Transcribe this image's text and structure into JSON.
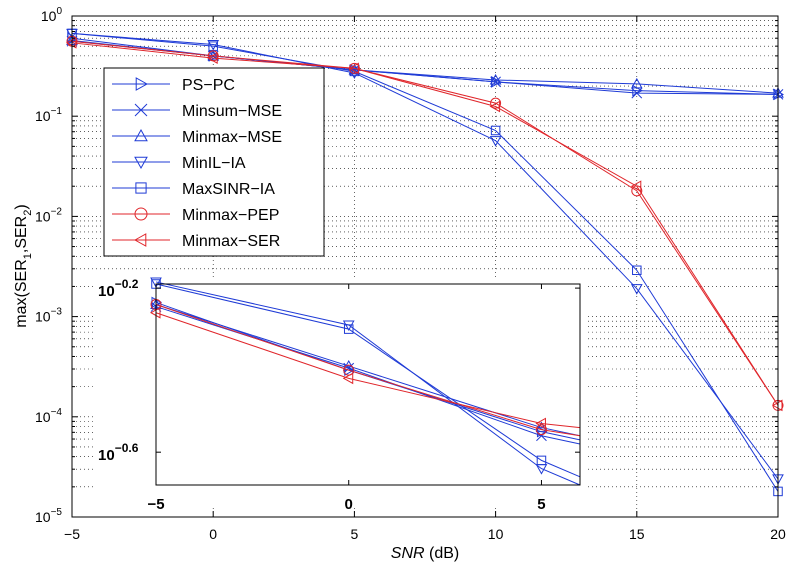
{
  "chart_data": {
    "type": "line",
    "xlabel_italic": "SNR",
    "xlabel_unit": " (dB)",
    "ylabel": {
      "base": "max(SER",
      "sub1": "1",
      "sep": ",SER",
      "sub2": "2",
      "end": ")"
    },
    "x_ticks": [
      "−5",
      "0",
      "5",
      "10",
      "15",
      "20"
    ],
    "y_ticks": [
      {
        "base": "10",
        "exp": "0"
      },
      {
        "base": "10",
        "exp": "−1"
      },
      {
        "base": "10",
        "exp": "−2"
      },
      {
        "base": "10",
        "exp": "−3"
      },
      {
        "base": "10",
        "exp": "−4"
      },
      {
        "base": "10",
        "exp": "−5"
      }
    ],
    "xlim": [
      -5,
      20
    ],
    "ylim_log10": [
      -5,
      0
    ],
    "x": [
      -5,
      0,
      5,
      10,
      15,
      20
    ],
    "colors": {
      "blue": "#1f3bd6",
      "red": "#e0262b"
    },
    "series": [
      {
        "name": "PS−PC",
        "marker": "triangle-right",
        "color": "blue",
        "values": [
          0.6,
          0.4,
          0.29,
          0.22,
          0.18,
          0.165
        ]
      },
      {
        "name": "Minsum−MSE",
        "marker": "x",
        "color": "blue",
        "values": [
          0.56,
          0.4,
          0.29,
          0.22,
          0.17,
          0.165
        ]
      },
      {
        "name": "Minmax−MSE",
        "marker": "triangle-up",
        "color": "blue",
        "values": [
          0.57,
          0.4,
          0.29,
          0.23,
          0.21,
          0.17
        ]
      },
      {
        "name": "MinIL−IA",
        "marker": "triangle-down",
        "color": "blue",
        "values": [
          0.67,
          0.52,
          0.27,
          0.057,
          0.0019,
          2.4e-05
        ]
      },
      {
        "name": "MaxSINR−IA",
        "marker": "square",
        "color": "blue",
        "values": [
          0.67,
          0.5,
          0.28,
          0.072,
          0.0029,
          1.8e-05
        ]
      },
      {
        "name": "Minmax−PEP",
        "marker": "circle",
        "color": "red",
        "values": [
          0.56,
          0.4,
          0.3,
          0.135,
          0.018,
          0.00013
        ]
      },
      {
        "name": "Minmax−SER",
        "marker": "triangle-left",
        "color": "red",
        "values": [
          0.54,
          0.38,
          0.3,
          0.125,
          0.02,
          0.00013
        ]
      }
    ],
    "inset": {
      "x_ticks": [
        "−5",
        "0",
        "5"
      ],
      "y_ticks": [
        {
          "base": "10",
          "exp": "−0.2",
          "value": -0.2
        },
        {
          "base": "10",
          "exp": "−0.6",
          "value": -0.6
        }
      ],
      "xlim": [
        -5,
        6
      ],
      "ylim_log10": [
        -0.68,
        -0.19
      ],
      "x": [
        -5,
        0,
        5,
        6
      ],
      "series_log10": [
        {
          "name": "PS−PC",
          "values": [
            -0.235,
            -0.4,
            -0.55,
            -0.57
          ]
        },
        {
          "name": "Minsum−MSE",
          "values": [
            -0.245,
            -0.395,
            -0.56,
            -0.58
          ]
        },
        {
          "name": "Minmax−MSE",
          "values": [
            -0.24,
            -0.39,
            -0.54,
            -0.56
          ]
        },
        {
          "name": "MinIL−IA",
          "values": [
            -0.185,
            -0.29,
            -0.64,
            -0.68
          ]
        },
        {
          "name": "MaxSINR−IA",
          "values": [
            -0.19,
            -0.3,
            -0.62,
            -0.66
          ]
        },
        {
          "name": "Minmax−PEP",
          "values": [
            -0.24,
            -0.4,
            -0.545,
            -0.56
          ]
        },
        {
          "name": "Minmax−SER",
          "values": [
            -0.26,
            -0.42,
            -0.53,
            -0.54
          ]
        }
      ]
    }
  }
}
